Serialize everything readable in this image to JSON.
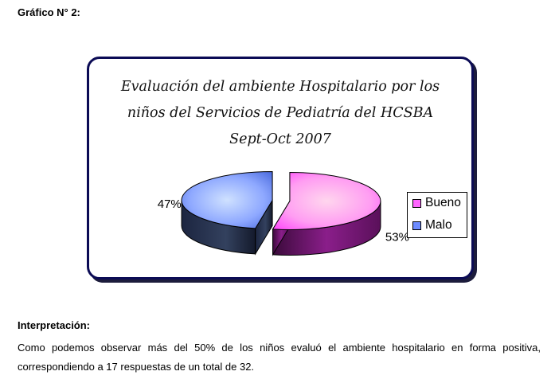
{
  "heading": "Gráfico N° 2:",
  "chart_data": {
    "type": "pie",
    "title_lines": [
      "Evaluación del ambiente Hospitalario por los",
      "niños del Servicios de Pediatría del HCSBA",
      "Sept-Oct 2007"
    ],
    "categories": [
      "Bueno",
      "Malo"
    ],
    "values": [
      53,
      47
    ],
    "data_labels": [
      "53%",
      "47%"
    ],
    "colors": [
      "#ff66ff",
      "#6d8bff"
    ],
    "exploded": true,
    "style": "3d",
    "legend_position": "right"
  },
  "interpretation": {
    "title": "Interpretación:",
    "text": "Como podemos observar más del 50% de los niños evaluó el ambiente hospitalario en forma positiva, correspondiendo a 17 respuestas de un total de 32."
  }
}
